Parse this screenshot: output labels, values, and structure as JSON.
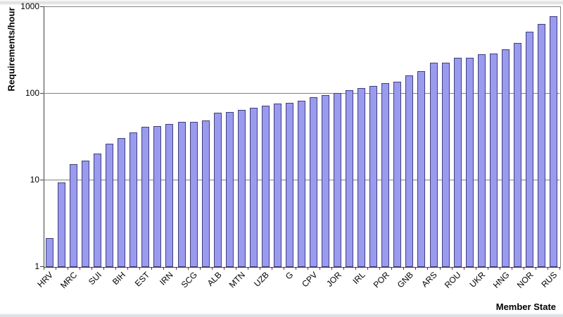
{
  "chart_data": {
    "type": "bar",
    "title": "",
    "xlabel": "Member State",
    "ylabel": "Requirements/hour",
    "y_scale": "log",
    "ylim": [
      1,
      1000
    ],
    "y_ticks": [
      1,
      10,
      100,
      1000
    ],
    "grid": "horizontal-major",
    "legend_position": "none",
    "bar_fill_color": "#9A9AEF",
    "bar_border_color": "#40407A",
    "gridline_color": "#808080",
    "categories": [
      "HRV",
      "",
      "MRC",
      "",
      "SUI",
      "",
      "BIH",
      "",
      "EST",
      "",
      "IRN",
      "",
      "SCG",
      "",
      "ALB",
      "",
      "MTN",
      "",
      "UZB",
      "",
      "G",
      "",
      "CPV",
      "",
      "JOR",
      "",
      "IRL",
      "",
      "POR",
      "",
      "GNB",
      "",
      "ARS",
      "",
      "ROU",
      "",
      "UKR",
      "",
      "HNG",
      "",
      "NOR",
      "",
      "RUS"
    ],
    "values": [
      2.1,
      9.3,
      15,
      16.5,
      20,
      26,
      30,
      35,
      41,
      41.5,
      43.5,
      46,
      46,
      48.5,
      59,
      60,
      64,
      68,
      72,
      76,
      77,
      81,
      90,
      94,
      100,
      107,
      113,
      120,
      130,
      136,
      160,
      180,
      224,
      224,
      257,
      257,
      281,
      285,
      320,
      380,
      510,
      630,
      770
    ]
  }
}
